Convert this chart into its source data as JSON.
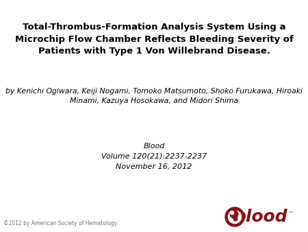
{
  "title_line1": "Total-Thrombus-Formation Analysis System Using a",
  "title_line2": "Microchip Flow Chamber Reflects Bleeding Severity of",
  "title_line3": "Patients with Type 1 Von Willebrand Disease.",
  "author_line1": "by Kenichi Ogiwara, Keiji Nogami, Tomoko Matsumoto, Shoko Furukawa, Hiroaki",
  "author_line2": "Minami, Kazuya Hosokawa, and Midori Shima",
  "journal_line1": "Blood",
  "journal_line2": "Volume 120(21):2237-2237",
  "journal_line3": "November 16, 2012",
  "copyright_text": "©2012 by American Society of Hematology",
  "bg_color": "#ffffff",
  "title_color": "#000000",
  "author_color": "#000000",
  "journal_color": "#000000",
  "copyright_color": "#777777",
  "blood_text_color": "#8b1010",
  "title_fontsize": 9.5,
  "author_fontsize": 7.8,
  "journal_fontsize": 8.0,
  "copyright_fontsize": 5.5,
  "blood_logo_fontsize": 18
}
